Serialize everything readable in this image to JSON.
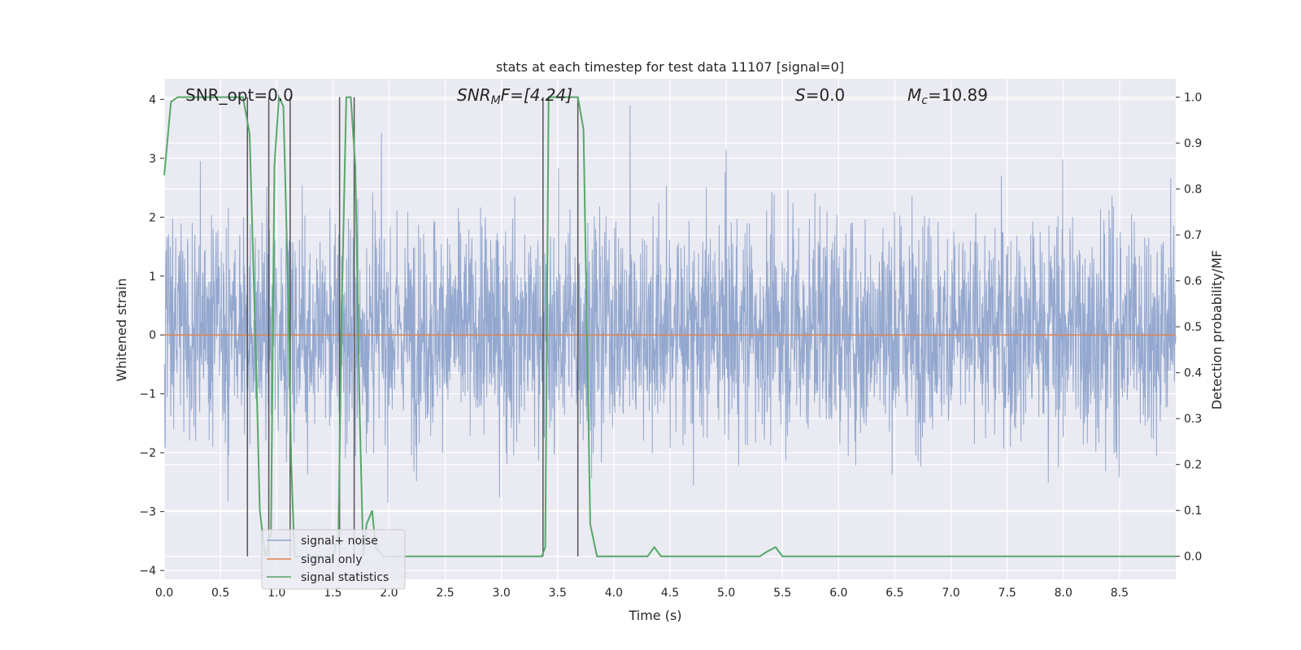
{
  "chart_data": {
    "type": "line",
    "title": "stats at each timestep for test data 11107 [signal=0]",
    "xlabel": "Time (s)",
    "ylabel_left": "Whitened strain",
    "ylabel_right": "Detection probability/MF",
    "xlim": [
      0.0,
      9.0
    ],
    "ylim_left": [
      -4.15,
      4.35
    ],
    "ylim_right": [
      -0.05,
      1.04
    ],
    "x_ticks": [
      "0.0",
      "0.5",
      "1.0",
      "1.5",
      "2.0",
      "2.5",
      "3.0",
      "3.5",
      "4.0",
      "4.5",
      "5.0",
      "5.5",
      "6.0",
      "6.5",
      "7.0",
      "7.5",
      "8.0",
      "8.5"
    ],
    "left_ticks": [
      "4",
      "3",
      "2",
      "1",
      "0",
      "−1",
      "−2",
      "−3",
      "−4"
    ],
    "right_ticks": [
      "1.0",
      "0.9",
      "0.8",
      "0.7",
      "0.6",
      "0.5",
      "0.4",
      "0.3",
      "0.2",
      "0.1",
      "0.0"
    ],
    "grid": true,
    "legend_position": "lower-left",
    "annotations": {
      "snr_opt": "SNR_opt=0.0",
      "snr_mf_name": "SNR",
      "snr_mf_sub": "M",
      "snr_mf_rest": "F=[4.24]",
      "s_name": "S",
      "s_rest": "=0.0",
      "mc_name": "M",
      "mc_sub": "c",
      "mc_rest": "=10.89"
    },
    "vertical_lines_x": [
      0.74,
      0.93,
      1.12,
      1.56,
      1.69,
      3.37,
      3.68
    ],
    "series": [
      {
        "name": "signal+ noise",
        "axis": "left",
        "color": "#8fa4cc",
        "description_of_envelope": "noise band roughly within -2.2 to 2.4, spikes up to 3.6 and down to -3.8"
      },
      {
        "name": "signal only",
        "axis": "left",
        "color": "#dd8452",
        "x": [
          0.0,
          9.0
        ],
        "y": [
          0.0,
          0.0
        ]
      },
      {
        "name": "signal statistics",
        "axis": "right",
        "color": "#55a868",
        "x": [
          0.0,
          0.06,
          0.12,
          0.18,
          0.7,
          0.76,
          0.82,
          0.85,
          0.9,
          0.95,
          0.98,
          1.02,
          1.06,
          1.1,
          1.13,
          1.16,
          1.2,
          1.5,
          1.55,
          1.58,
          1.62,
          1.66,
          1.7,
          1.74,
          1.77,
          1.8,
          1.85,
          1.88,
          1.95,
          2.0,
          3.25,
          3.36,
          3.39,
          3.42,
          3.48,
          3.68,
          3.73,
          3.79,
          3.85,
          3.9,
          4.3,
          4.36,
          4.42,
          4.48,
          5.3,
          5.36,
          5.44,
          5.5,
          9.0
        ],
        "y": [
          0.83,
          0.99,
          1.0,
          1.0,
          1.0,
          0.92,
          0.4,
          0.1,
          0.0,
          0.05,
          0.85,
          1.0,
          0.98,
          0.6,
          0.2,
          0.0,
          0.0,
          0.0,
          0.05,
          0.55,
          1.0,
          1.0,
          0.85,
          0.3,
          0.0,
          0.07,
          0.1,
          0.02,
          0.0,
          0.0,
          0.0,
          0.0,
          0.02,
          1.0,
          1.0,
          1.0,
          0.93,
          0.07,
          0.0,
          0.0,
          0.0,
          0.02,
          0.0,
          0.0,
          0.0,
          0.01,
          0.02,
          0.0,
          0.0
        ]
      }
    ]
  }
}
